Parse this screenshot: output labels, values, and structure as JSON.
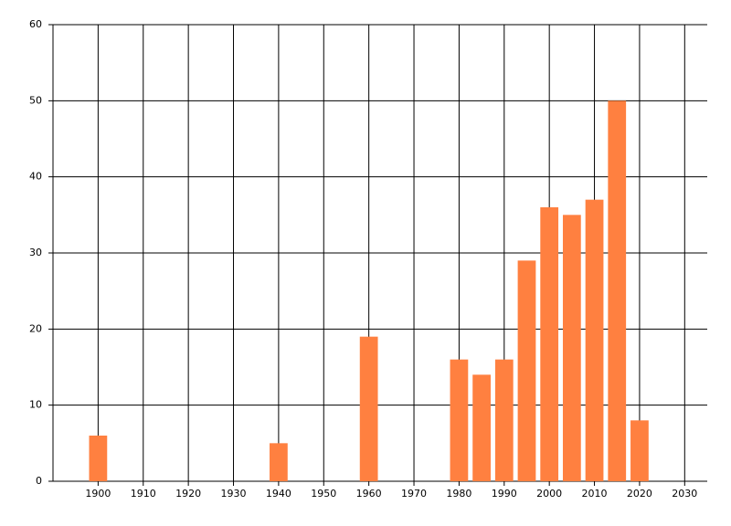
{
  "chart_data": {
    "type": "bar",
    "x": [
      1900,
      1940,
      1960,
      1980,
      1985,
      1990,
      1995,
      2000,
      2005,
      2010,
      2015,
      2020
    ],
    "values": [
      6,
      5,
      19,
      16,
      14,
      16,
      29,
      36,
      35,
      37,
      50,
      8
    ],
    "color": "#ff8040",
    "xlim": [
      1890,
      2035
    ],
    "xticks": [
      1900,
      1910,
      1920,
      1930,
      1940,
      1950,
      1960,
      1970,
      1980,
      1990,
      2000,
      2010,
      2020,
      2030
    ],
    "ylim": [
      0,
      60
    ],
    "yticks": [
      0,
      10,
      20,
      30,
      40,
      50,
      60
    ],
    "grid": true
  }
}
